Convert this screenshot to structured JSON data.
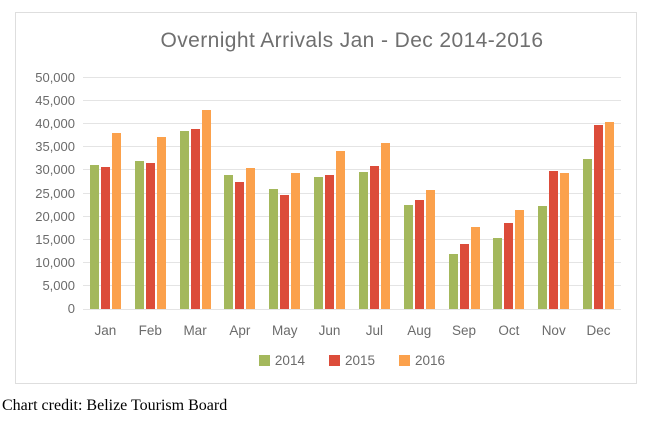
{
  "page": {
    "footer_credit": "Chart credit: Belize Tourism Board"
  },
  "colors": {
    "panel_border": "#dedede",
    "gridline": "#e4e4e4",
    "title_text": "#6f6f6f",
    "axis_text": "#6b6b6b",
    "series_2014": "#a4b85c",
    "series_2015": "#dc4c3a",
    "series_2016": "#fba14c"
  },
  "chart_data": {
    "type": "bar",
    "title": "Overnight Arrivals Jan - Dec 2014-2016",
    "xlabel": "",
    "ylabel": "",
    "categories": [
      "Jan",
      "Feb",
      "Mar",
      "Apr",
      "May",
      "Jun",
      "Jul",
      "Aug",
      "Sep",
      "Oct",
      "Nov",
      "Dec"
    ],
    "series": [
      {
        "name": "2014",
        "color": "#a4b85c",
        "values": [
          31200,
          32000,
          38500,
          29000,
          26000,
          28600,
          29600,
          22600,
          11800,
          15300,
          22300,
          32500
        ]
      },
      {
        "name": "2015",
        "color": "#dc4c3a",
        "values": [
          30800,
          31600,
          39000,
          27400,
          24600,
          29100,
          30900,
          23600,
          14100,
          18700,
          29900,
          39900
        ]
      },
      {
        "name": "2016",
        "color": "#fba14c",
        "values": [
          38100,
          37300,
          43100,
          30500,
          29400,
          34100,
          35900,
          25700,
          17800,
          21500,
          29500,
          40500
        ]
      }
    ],
    "ylim": [
      0,
      50000
    ],
    "y_tick_step": 5000,
    "y_tick_labels": [
      "0",
      "5,000",
      "10,000",
      "15,000",
      "20,000",
      "25,000",
      "30,000",
      "35,000",
      "40,000",
      "45,000",
      "50,000"
    ],
    "grid": true,
    "legend_position": "bottom"
  }
}
